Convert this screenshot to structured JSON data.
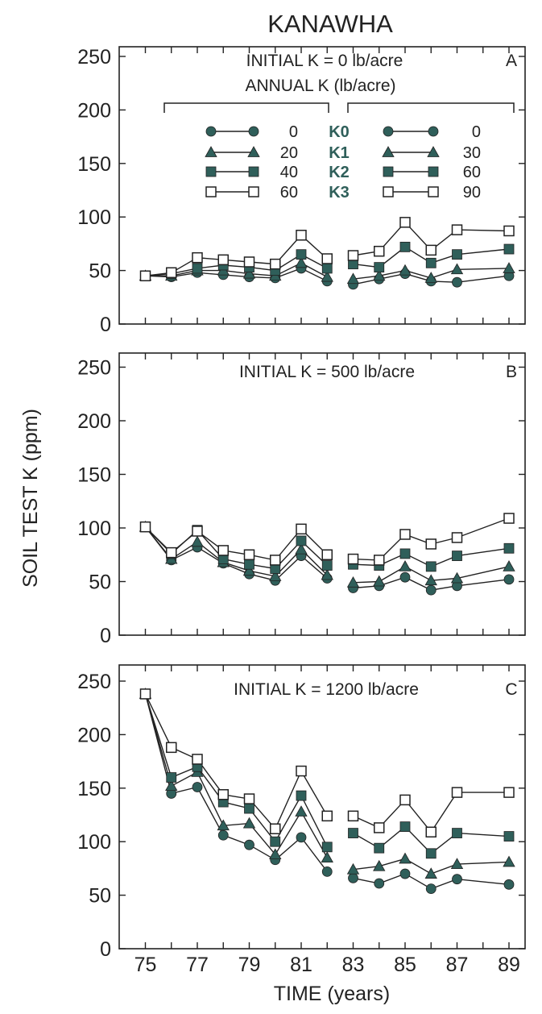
{
  "colors": {
    "marker": "#2f5f5a",
    "line": "#222222"
  },
  "chart_data": {
    "type": "line",
    "title": "KANAWHA",
    "xlabel": "TIME  (years)",
    "ylabel": "SOIL TEST K  (ppm)",
    "x_tick_labels": [
      "75",
      "77",
      "79",
      "81",
      "83",
      "85",
      "87",
      "89"
    ],
    "y_tick_labels": [
      "0",
      "50",
      "100",
      "150",
      "200",
      "250"
    ],
    "xlim": [
      75,
      89
    ],
    "ylim": [
      0,
      250
    ],
    "legend": {
      "header": "ANNUAL K (lb/acre)",
      "codes": [
        "K0",
        "K1",
        "K2",
        "K3"
      ],
      "left_values": [
        "0",
        "20",
        "40",
        "60"
      ],
      "right_values": [
        "0",
        "30",
        "60",
        "90"
      ]
    },
    "panels": [
      {
        "letter": "A",
        "annotation": "INITIAL K = 0 lb/acre",
        "segments": [
          {
            "x": [
              75,
              76,
              77,
              78,
              79,
              80,
              81,
              82
            ],
            "series": [
              {
                "values": [
                  45,
                  44,
                  48,
                  46,
                  44,
                  43,
                  52,
                  40
                ]
              },
              {
                "values": [
                  45,
                  45,
                  50,
                  50,
                  47,
                  45,
                  57,
                  44
                ]
              },
              {
                "values": [
                  45,
                  47,
                  52,
                  55,
                  53,
                  50,
                  65,
                  52
                ]
              },
              {
                "values": [
                  45,
                  48,
                  62,
                  60,
                  58,
                  56,
                  83,
                  61
                ]
              }
            ]
          },
          {
            "x": [
              83,
              84,
              85,
              86,
              87,
              89
            ],
            "series": [
              {
                "values": [
                  37,
                  42,
                  47,
                  40,
                  39,
                  45
                ]
              },
              {
                "values": [
                  42,
                  45,
                  50,
                  43,
                  51,
                  52
                ]
              },
              {
                "values": [
                  56,
                  53,
                  72,
                  57,
                  65,
                  70
                ]
              },
              {
                "values": [
                  64,
                  68,
                  95,
                  69,
                  88,
                  87
                ]
              }
            ]
          }
        ]
      },
      {
        "letter": "B",
        "annotation": "INITIAL K = 500 lb/acre",
        "segments": [
          {
            "x": [
              75,
              76,
              77,
              78,
              79,
              80,
              81,
              82
            ],
            "series": [
              {
                "values": [
                  101,
                  70,
                  82,
                  67,
                  57,
                  51,
                  74,
                  53
                ]
              },
              {
                "values": [
                  101,
                  71,
                  87,
                  68,
                  60,
                  55,
                  80,
                  56
                ]
              },
              {
                "values": [
                  101,
                  76,
                  98,
                  71,
                  66,
                  62,
                  88,
                  65
                ]
              },
              {
                "values": [
                  101,
                  77,
                  97,
                  79,
                  75,
                  70,
                  99,
                  75
                ]
              }
            ]
          },
          {
            "x": [
              83,
              84,
              85,
              86,
              87,
              89
            ],
            "series": [
              {
                "values": [
                  44,
                  46,
                  54,
                  42,
                  46,
                  52
                ]
              },
              {
                "values": [
                  49,
                  50,
                  64,
                  51,
                  53,
                  64
                ]
              },
              {
                "values": [
                  66,
                  65,
                  76,
                  64,
                  74,
                  81
                ]
              },
              {
                "values": [
                  71,
                  70,
                  94,
                  85,
                  91,
                  109
                ]
              }
            ]
          }
        ]
      },
      {
        "letter": "C",
        "annotation": "INITIAL K = 1200 lb/acre",
        "segments": [
          {
            "x": [
              75,
              76,
              77,
              78,
              79,
              80,
              81,
              82
            ],
            "series": [
              {
                "values": [
                  238,
                  145,
                  151,
                  106,
                  97,
                  83,
                  104,
                  72
                ]
              },
              {
                "values": [
                  238,
                  152,
                  165,
                  115,
                  117,
                  88,
                  128,
                  85
                ]
              },
              {
                "values": [
                  238,
                  160,
                  170,
                  137,
                  131,
                  100,
                  143,
                  95
                ]
              },
              {
                "values": [
                  238,
                  188,
                  177,
                  144,
                  140,
                  112,
                  166,
                  124
                ]
              }
            ]
          },
          {
            "x": [
              83,
              84,
              85,
              86,
              87,
              89
            ],
            "series": [
              {
                "values": [
                  66,
                  61,
                  70,
                  56,
                  65,
                  60
                ]
              },
              {
                "values": [
                  74,
                  77,
                  84,
                  70,
                  79,
                  81
                ]
              },
              {
                "values": [
                  108,
                  94,
                  114,
                  89,
                  108,
                  105
                ]
              },
              {
                "values": [
                  124,
                  113,
                  139,
                  109,
                  146,
                  146
                ]
              }
            ]
          }
        ]
      }
    ]
  }
}
